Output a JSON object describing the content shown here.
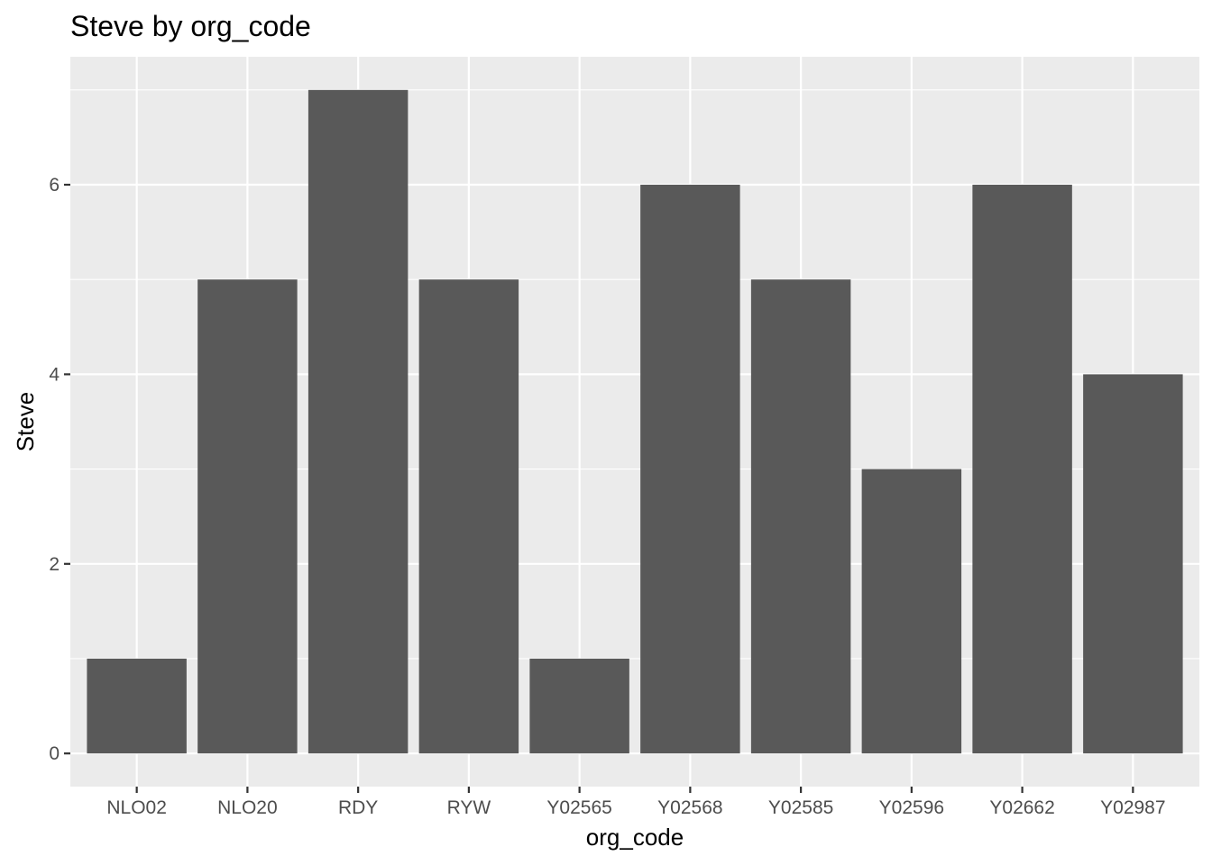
{
  "chart_data": {
    "type": "bar",
    "title": "Steve by org_code",
    "xlabel": "org_code",
    "ylabel": "Steve",
    "categories": [
      "NLO02",
      "NLO20",
      "RDY",
      "RYW",
      "Y02565",
      "Y02568",
      "Y02585",
      "Y02596",
      "Y02662",
      "Y02987"
    ],
    "values": [
      1,
      5,
      7,
      5,
      1,
      6,
      5,
      3,
      6,
      4
    ],
    "ylim": [
      -0.35,
      7.35
    ],
    "yticks": [
      0,
      2,
      4,
      6
    ],
    "grid": true,
    "legend": "none",
    "colors": {
      "bar": "#595959",
      "panel": "#ebebeb",
      "grid": "#ffffff",
      "tick_text": "#4d4d4d",
      "tick_mark": "#333333"
    }
  }
}
